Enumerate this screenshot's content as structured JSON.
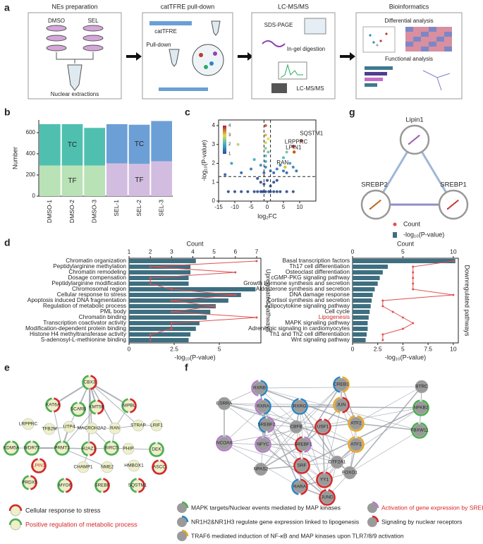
{
  "panel_labels": [
    "a",
    "b",
    "c",
    "d",
    "e",
    "f",
    "g"
  ],
  "workflow": {
    "steps": [
      {
        "title": "NEs preparation",
        "labels": [
          "DMSO",
          "SEL",
          "Nuclear extractions"
        ]
      },
      {
        "title": "catTFRE pull-down",
        "labels": [
          "catTFRE",
          "Pull-down"
        ]
      },
      {
        "title": "LC-MS/MS",
        "labels": [
          "SDS-PAGE",
          "In-gel digestion",
          "LC-MS/MS"
        ]
      },
      {
        "title": "Bioinformatics",
        "labels": [
          "Differential analysis",
          "Functional analysis"
        ]
      }
    ]
  },
  "chart_data": [
    {
      "type": "bar",
      "stacked": true,
      "ylabel": "Number",
      "categories": [
        "DMSO-1",
        "DMSO-2",
        "DMSO-3",
        "SEL-1",
        "SEL-2",
        "SEL-3"
      ],
      "series": [
        {
          "name": "TF",
          "colors": [
            "#b9e2b6",
            "#b9e2b6",
            "#b9e2b6",
            "#d2bde0",
            "#d2bde0",
            "#d2bde0"
          ],
          "values": [
            290,
            290,
            290,
            310,
            305,
            330
          ]
        },
        {
          "name": "TC",
          "colors": [
            "#4fc0b0",
            "#4fc0b0",
            "#4fc0b0",
            "#6c9fd6",
            "#6c9fd6",
            "#6c9fd6"
          ],
          "values": [
            390,
            390,
            355,
            370,
            370,
            380
          ]
        }
      ],
      "ylim": [
        0,
        720
      ],
      "yticks": [
        0,
        200,
        400,
        600
      ]
    },
    {
      "type": "scatter",
      "xlabel": "log₂FC",
      "ylabel": "-log₁₀(P-value)",
      "x": [
        -12,
        -10,
        -8,
        -6,
        -4,
        -3,
        -2,
        -1.5,
        -1,
        -0.5,
        0.5,
        1,
        2,
        3,
        4,
        6,
        8,
        -2,
        -1,
        0,
        1,
        2,
        -3,
        3,
        -1,
        1,
        -0.5,
        -0.5,
        -0.5,
        -0.5,
        -0.5,
        -0.5,
        -0.5,
        0.3,
        0.3,
        2,
        3,
        4,
        5,
        6,
        7,
        8,
        9,
        -8,
        -5,
        -11,
        -13,
        -9,
        -4,
        -2,
        5,
        6
      ],
      "y": [
        0.5,
        0.5,
        0.5,
        0.5,
        0.5,
        0.5,
        0.5,
        0.5,
        0.5,
        0.5,
        0.5,
        0.5,
        0.5,
        0.5,
        0.5,
        0.5,
        0.5,
        1.0,
        0.9,
        1.1,
        0.8,
        1.0,
        1.2,
        1.1,
        1.5,
        1.6,
        1.8,
        2.1,
        2.4,
        2.8,
        3.1,
        3.5,
        4.0,
        2.6,
        3.3,
        1.5,
        1.7,
        1.9,
        1.6,
        1.5,
        2.0,
        1.8,
        1.6,
        1.5,
        1.7,
        2.0,
        1.4,
        3.0,
        2.2,
        1.9,
        2.3,
        2.6
      ],
      "annotations": [
        {
          "text": "SQSTM1",
          "x": 10.5,
          "y": 3.2,
          "color": "#c0392b"
        },
        {
          "text": "LRPPRC",
          "x": 8,
          "y": 2.9,
          "color": "#c0392b"
        },
        {
          "text": "LPIN1",
          "x": 8.3,
          "y": 2.6,
          "color": "#d35400"
        },
        {
          "text": "RAN",
          "x": 5.5,
          "y": 1.8,
          "color": "#c9c93a"
        }
      ],
      "thresholds": {
        "y": 1.3,
        "x": [
          -1,
          1
        ]
      },
      "colorbar": {
        "ticks": [
          1,
          2,
          3,
          4
        ]
      },
      "xlim": [
        -15,
        15
      ],
      "xticks": [
        -15,
        -10,
        -5,
        0,
        5,
        10
      ],
      "ylim": [
        0,
        4.3
      ],
      "yticks": [
        0,
        1,
        2,
        3,
        4
      ]
    },
    {
      "type": "hbar",
      "xlabel": "-log₁₀(P-value)",
      "x2label": "Count",
      "side_label": "Upregulated pathways",
      "categories": [
        "Chromatin organization",
        "Peptidylarginine methylation",
        "Chromatin remodeling",
        "Dosage compensation",
        "Peptidylarginine modification",
        "Chromosomal region",
        "Cellular response to stress",
        "Apoptosis induced DNA fragmentation",
        "Regulation of  metabolic process",
        "PML body",
        "Chromatin binding",
        "Transcription coactivator activity",
        "Modification-dependent protein binding",
        "Histone H4 methyltransferase activity",
        "S-adenosyl-L-methionine binding"
      ],
      "category_colors": [
        "#222",
        "#222",
        "#222",
        "#222",
        "#222",
        "#222",
        "#222",
        "#222",
        "#222",
        "#222",
        "#222",
        "#222",
        "#222",
        "#222",
        "#222"
      ],
      "values": [
        3.7,
        3.4,
        3.4,
        3.3,
        3.3,
        7.0,
        6.2,
        5.5,
        4.8,
        4.5,
        4.3,
        3.9,
        3.7,
        3.4,
        3.3
      ],
      "counts": [
        7,
        2,
        6,
        2,
        2,
        3,
        6,
        3,
        5,
        3,
        7,
        3,
        3,
        2,
        2
      ],
      "color": "#3e6f80",
      "line_color": "#e05050",
      "xlim": [
        0,
        7.3
      ],
      "xticks": [
        0,
        2.5,
        5
      ],
      "x2lim": [
        1,
        7.2
      ],
      "x2ticks": [
        1,
        2,
        3,
        4,
        5,
        6,
        7
      ]
    },
    {
      "type": "hbar",
      "xlabel": "-log₁₀(P-value)",
      "x2label": "Count",
      "side_label": "Downregulated pathways",
      "categories": [
        "Basal transcription factors",
        "Th17 cell differentiation",
        "Osteoclast differentiation",
        "cGMP-PKG signaling pathway",
        "Growth hormone synthesis and secretion",
        "Aldosterone synthesis and secretion",
        "DNA damage response",
        "Cortisol synthesis and secretion",
        "Adipocytokine signaling pathway",
        "Cell cycle",
        "Lipogenesis",
        "MAPK signaling pathway",
        "Adrenergic signaling in cardiomyocytes",
        "Th1 and Th2 cell differentiation",
        "Wnt signaling pathway"
      ],
      "category_colors": [
        "#222",
        "#222",
        "#222",
        "#222",
        "#222",
        "#222",
        "#222",
        "#222",
        "#222",
        "#222",
        "#d62728",
        "#222",
        "#222",
        "#222",
        "#222"
      ],
      "values": [
        10.2,
        3.5,
        3.0,
        2.7,
        2.5,
        2.2,
        2.0,
        1.9,
        1.8,
        1.7,
        1.6,
        1.5,
        1.5,
        1.4,
        1.3
      ],
      "counts": [
        10,
        6,
        6,
        6,
        6,
        6,
        10,
        3,
        3,
        4,
        5,
        6,
        5,
        3,
        3
      ],
      "color": "#3e6f80",
      "line_color": "#e05050",
      "xlim": [
        0,
        10.5
      ],
      "xticks": [
        0,
        2.5,
        5,
        7.5,
        10
      ],
      "x2lim": [
        0,
        10.5
      ],
      "x2ticks": [
        0,
        5,
        10
      ]
    }
  ],
  "network_g": {
    "nodes": [
      "Lipin1",
      "SREBP2",
      "SREBP1"
    ],
    "legend": [
      "Count",
      "-log₁₀(P-value)"
    ]
  },
  "network_e": {
    "nodes": [
      "CBX3",
      "KAT6A",
      "SCARB",
      "KMT5B",
      "NIPBL",
      "LRPPRC",
      "TFB2M",
      "UTP4",
      "MACROH2A2",
      "RAN",
      "STRAP",
      "LRIF1",
      "KDM5A",
      "WDR77",
      "PRMT1",
      "H2AZ1",
      "BIRC5",
      "PHIP",
      "DEK",
      "LPIN1",
      "CHAMP1",
      "NME2",
      "HMBOX1",
      "ASCC",
      "PRDX5",
      "MYO6",
      "SREBF",
      "SQSTM1"
    ],
    "legend": [
      {
        "text": "Cellular response to stress",
        "color": "#222"
      },
      {
        "text": "Positive regulation of metabolic process",
        "color": "#d62728"
      }
    ]
  },
  "network_f": {
    "nodes": [
      "ESRRA",
      "RXRB",
      "RXRA",
      "RXRG",
      "CREB1",
      "JUN",
      "BTRC",
      "NFKB2",
      "SREBF2",
      "CBFB",
      "USF1",
      "ATF2",
      "NCOA6",
      "NFYC",
      "SREBF1",
      "ATF1",
      "FBXW11",
      "SRF",
      "GTF2A1",
      "NPAS2",
      "YY1",
      "FOXO1",
      "RARA",
      "JUND"
    ],
    "legend": [
      {
        "text": "MAPK targets/Nuclear events mediated by MAP kinases",
        "color": "#222"
      },
      {
        "text": "Activation of gene expression by SREBF",
        "color": "#d62728"
      },
      {
        "text": "NR1H2&NR1H3 regulate gene expression linked to lipogenesis",
        "color": "#222"
      },
      {
        "text": "Signaling by nuclear receptors",
        "color": "#222"
      },
      {
        "text": "TRAF6 mediated induction of NF-κB and MAP kinases upon TLR7/8/9 activation",
        "color": "#222"
      }
    ]
  }
}
